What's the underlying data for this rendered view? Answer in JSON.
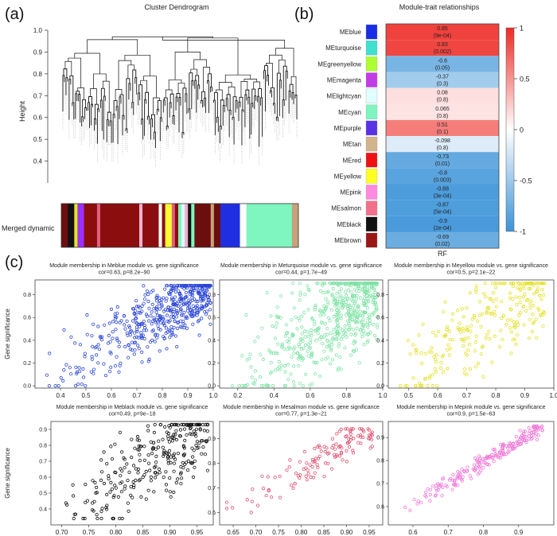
{
  "panel_labels": [
    "(a)",
    "(b)",
    "(c)"
  ],
  "chart_data": [
    {
      "type": "dendrogram",
      "title": "Cluster Dendrogram",
      "ylabel": "Height",
      "ylim": [
        0.3,
        1.0
      ],
      "yticks": [
        "1.0",
        "0.9",
        "0.8",
        "0.7",
        "0.6",
        "0.5",
        "0.4"
      ],
      "colorbar_label": "Merged dynamic",
      "colorbar_segments": [
        {
          "color": "#6b0e0e",
          "share": 2
        },
        {
          "color": "#111111",
          "share": 2
        },
        {
          "color": "#e6e622",
          "share": 1
        },
        {
          "color": "#9b30ff",
          "share": 2
        },
        {
          "color": "#8b0d0d",
          "share": 4
        },
        {
          "color": "#e06080",
          "share": 1
        },
        {
          "color": "#8b0d0d",
          "share": 12
        },
        {
          "color": "#f0b0d0",
          "share": 1
        },
        {
          "color": "#8b0d0d",
          "share": 5
        },
        {
          "color": "#ffffff",
          "share": 1
        },
        {
          "color": "#8b0d0d",
          "share": 1
        },
        {
          "color": "#ffff33",
          "share": 2
        },
        {
          "color": "#e06080",
          "share": 1
        },
        {
          "color": "#8b0d0d",
          "share": 1
        },
        {
          "color": "#7ff5c0",
          "share": 1
        },
        {
          "color": "#e0ffff",
          "share": 1
        },
        {
          "color": "#f0b0d0",
          "share": 1
        },
        {
          "color": "#111111",
          "share": 1
        },
        {
          "color": "#7ff5c0",
          "share": 1
        },
        {
          "color": "#6b0e0e",
          "share": 5
        },
        {
          "color": "#c8a27a",
          "share": 1
        },
        {
          "color": "#6b0e0e",
          "share": 2
        },
        {
          "color": "#1f2fe0",
          "share": 6
        },
        {
          "color": "#ffffff",
          "share": 2
        },
        {
          "color": "#7ff5c0",
          "share": 14
        },
        {
          "color": "#c8a27a",
          "share": 2
        }
      ]
    },
    {
      "type": "heatmap",
      "title": "Module-trait relationships",
      "xlabel": "RF",
      "rows": [
        {
          "module": "MEblue",
          "color": "#1a2ee6",
          "corr": 0.85,
          "p": "(9e-04)"
        },
        {
          "module": "MEturquoise",
          "color": "#40e0d0",
          "corr": 0.83,
          "p": "(0.002)"
        },
        {
          "module": "MEgreenyellow",
          "color": "#adff2f",
          "corr": -0.6,
          "p": "(0.05)"
        },
        {
          "module": "MEmagenta",
          "color": "#c23ce6",
          "corr": -0.37,
          "p": "(0.3)"
        },
        {
          "module": "MElightcyan",
          "color": "#e0ffff",
          "corr": 0.08,
          "p": "(0.8)"
        },
        {
          "module": "MEcyan",
          "color": "#7ff5c0",
          "corr": 0.065,
          "p": "(0.8)"
        },
        {
          "module": "MEpurple",
          "color": "#5a32e6",
          "corr": 0.51,
          "p": "(0.1)"
        },
        {
          "module": "MEtan",
          "color": "#d2b48c",
          "corr": -0.098,
          "p": "(0.8)"
        },
        {
          "module": "MEred",
          "color": "#ee1111",
          "corr": -0.73,
          "p": "(0.01)"
        },
        {
          "module": "MEyellow",
          "color": "#ffff22",
          "corr": -0.8,
          "p": "(0.003)"
        },
        {
          "module": "MEpink",
          "color": "#ff8adf",
          "corr": -0.88,
          "p": "(3e-04)"
        },
        {
          "module": "MEsalmon",
          "color": "#f2708a",
          "corr": -0.87,
          "p": "(5e-04)"
        },
        {
          "module": "MEblack",
          "color": "#111111",
          "corr": -0.9,
          "p": "(2e-04)"
        },
        {
          "module": "MEbrown",
          "color": "#9b1616",
          "corr": -0.69,
          "p": "(0.02)"
        }
      ],
      "colorbar_ticks": [
        "1",
        "0.5",
        "0",
        "-0.5",
        "-1"
      ],
      "colorbar_range": [
        -1,
        1
      ]
    },
    {
      "type": "scatter",
      "title": "Module membership in Meblue module vs. gene significance",
      "subtitle": "cor=0.63, p=8.2e−90",
      "ylabel": "Gene significance",
      "color": "#2b47d6",
      "xlim": [
        0.3,
        1.0
      ],
      "ylim": [
        -0.02,
        0.93
      ],
      "xticks": [
        0.4,
        0.5,
        0.6,
        0.7,
        0.8,
        0.9,
        1.0
      ],
      "yticks": [
        0.0,
        0.2,
        0.4,
        0.6,
        0.8
      ],
      "n_points": 520,
      "x_range": [
        0.32,
        0.99
      ],
      "y_range": [
        0.0,
        0.88
      ],
      "seed": 11
    },
    {
      "type": "scatter",
      "title": "Module membership in Meturquoise module vs. gene significance",
      "subtitle": "cor=0.44, p=1.7e−49",
      "ylabel": "",
      "color": "#7fe3a6",
      "xlim": [
        0.1,
        1.0
      ],
      "ylim": [
        -0.02,
        0.93
      ],
      "xticks": [
        0.2,
        0.4,
        0.6,
        0.8,
        1.0
      ],
      "yticks": [
        0.0,
        0.2,
        0.4,
        0.6,
        0.8
      ],
      "n_points": 620,
      "x_range": [
        0.15,
        0.97
      ],
      "y_range": [
        0.0,
        0.9
      ],
      "seed": 23
    },
    {
      "type": "scatter",
      "title": "Module membership in Meyellow module vs. gene significance",
      "subtitle": "cor=0.5, p=2.1e−22",
      "ylabel": "",
      "color": "#e3e024",
      "xlim": [
        0.43,
        1.0
      ],
      "ylim": [
        -0.02,
        0.93
      ],
      "xticks": [
        0.5,
        0.6,
        0.7,
        0.8,
        0.9,
        1.0
      ],
      "yticks": [
        0.0,
        0.2,
        0.4,
        0.6,
        0.8
      ],
      "n_points": 260,
      "x_range": [
        0.45,
        0.97
      ],
      "y_range": [
        0.0,
        0.9
      ],
      "seed": 37
    },
    {
      "type": "scatter",
      "title": "Module membership in Meblack module vs. gene significance",
      "subtitle": "cor=0.49, p=9e−18",
      "ylabel": "Gene significance",
      "color": "#111111",
      "xlim": [
        0.68,
        0.98
      ],
      "ylim": [
        0.3,
        0.95
      ],
      "xticks": [
        0.7,
        0.75,
        0.8,
        0.85,
        0.9,
        0.95
      ],
      "yticks": [
        0.4,
        0.5,
        0.6,
        0.7,
        0.8,
        0.9
      ],
      "n_points": 280,
      "x_range": [
        0.69,
        0.97
      ],
      "y_range": [
        0.34,
        0.93
      ],
      "seed": 53
    },
    {
      "type": "scatter",
      "title": "Module membership in Mesalmon module vs. gene significance",
      "subtitle": "cor=0.77, p=1.3e−21",
      "ylabel": "",
      "color": "#e0506e",
      "xlim": [
        0.62,
        0.98
      ],
      "ylim": [
        0.55,
        0.97
      ],
      "xticks": [
        0.65,
        0.7,
        0.75,
        0.8,
        0.85,
        0.9,
        0.95
      ],
      "yticks": [
        0.6,
        0.7,
        0.8,
        0.9
      ],
      "n_points": 130,
      "x_range": [
        0.63,
        0.96
      ],
      "y_range": [
        0.6,
        0.94
      ],
      "seed": 71
    },
    {
      "type": "scatter",
      "title": "Module membership in Mepink module vs. gene significance",
      "subtitle": "cor=0.9, p=1.5e−63",
      "ylabel": "",
      "color": "#f07ad8",
      "xlim": [
        0.53,
        1.0
      ],
      "ylim": [
        0.52,
        0.97
      ],
      "xticks": [
        0.6,
        0.7,
        0.8,
        0.9
      ],
      "yticks": [
        0.6,
        0.7,
        0.8,
        0.9
      ],
      "n_points": 210,
      "x_range": [
        0.55,
        0.97
      ],
      "y_range": [
        0.56,
        0.95
      ],
      "seed": 89
    }
  ]
}
